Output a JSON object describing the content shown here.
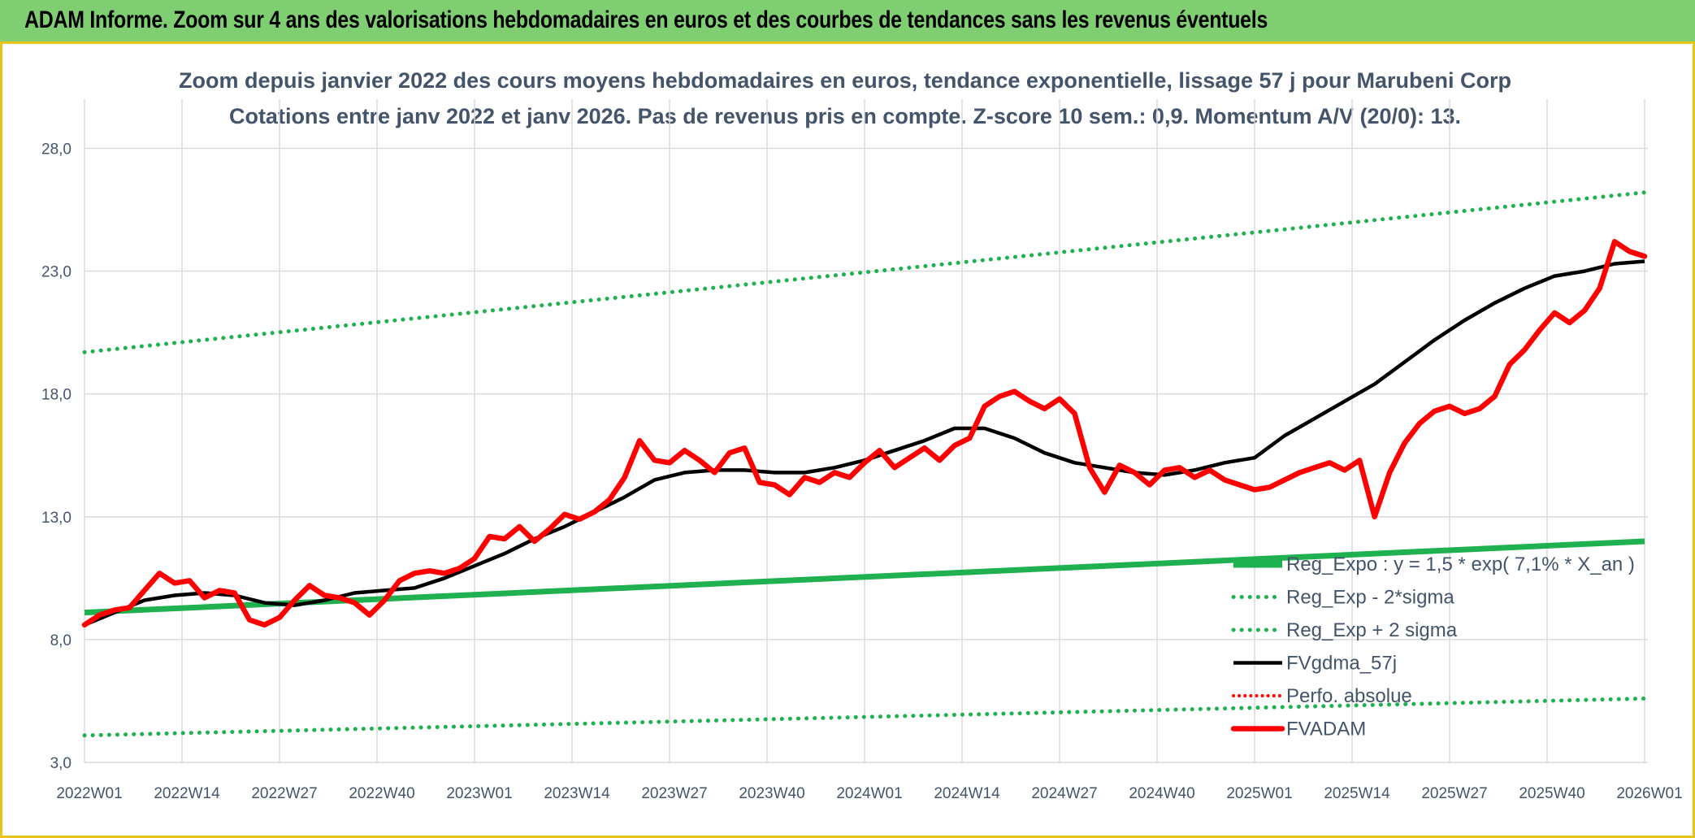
{
  "banner": {
    "title": "ADAM Informe. Zoom sur 4 ans des valorisations hebdomadaires en euros et des courbes de tendances sans les revenus éventuels"
  },
  "colors": {
    "banner_bg": "#7fcf72",
    "frame": "#e6c419",
    "text": "#44546a",
    "green": "#1fb04f",
    "black": "#000000",
    "red": "#ff0000",
    "grid": "#d9d9d9"
  },
  "chart_data": {
    "type": "line",
    "title": "Zoom depuis janvier 2022 des cours moyens hebdomadaires en euros, tendance exponentielle, lissage 57 j pour Marubeni Corp",
    "subtitle": "Cotations entre janv 2022 et janv 2026. Pas de revenus pris en compte. Z-score 10 sem.: 0,9. Momentum A/V (20/0): 13.",
    "x_ticks": [
      "2022W01",
      "2022W14",
      "2022W27",
      "2022W40",
      "2023W01",
      "2023W14",
      "2023W27",
      "2023W40",
      "2024W01",
      "2024W14",
      "2024W27",
      "2024W40",
      "2025W01",
      "2025W14",
      "2025W27",
      "2025W40",
      "2026W01"
    ],
    "y_ticks": [
      "3,0",
      "8,0",
      "13,0",
      "18,0",
      "23,0",
      "28,0"
    ],
    "ylim": [
      3,
      30
    ],
    "x_range_weeks": [
      0,
      208
    ],
    "grid": true,
    "legend_placement": "bottom-right",
    "series": [
      {
        "name": "Reg_Expo : y = 1,5 * exp( 7,1% *  X_an )",
        "style": "solid-green",
        "x": [
          0,
          208
        ],
        "values": [
          9.1,
          12.0
        ]
      },
      {
        "name": "Reg_Exp - 2*sigma",
        "style": "dotted-green",
        "x": [
          0,
          208
        ],
        "values": [
          4.1,
          5.6
        ]
      },
      {
        "name": "Reg_Exp + 2 sigma",
        "style": "dotted-green",
        "x": [
          0,
          208
        ],
        "values": [
          19.7,
          26.2
        ]
      },
      {
        "name": "FVgdma_57j",
        "style": "solid-black",
        "x": [
          0,
          4,
          8,
          12,
          16,
          20,
          24,
          28,
          32,
          36,
          40,
          44,
          48,
          52,
          56,
          60,
          64,
          68,
          72,
          76,
          80,
          84,
          88,
          92,
          96,
          100,
          104,
          108,
          112,
          116,
          120,
          124,
          128,
          132,
          136,
          140,
          144,
          148,
          152,
          156,
          160,
          164,
          168,
          172,
          176,
          180,
          184,
          188,
          192,
          196,
          200,
          204,
          208
        ],
        "values": [
          8.6,
          9.1,
          9.6,
          9.8,
          9.9,
          9.8,
          9.5,
          9.4,
          9.6,
          9.9,
          10.0,
          10.1,
          10.5,
          11.0,
          11.5,
          12.1,
          12.6,
          13.2,
          13.8,
          14.5,
          14.8,
          14.9,
          14.9,
          14.8,
          14.8,
          15.0,
          15.3,
          15.7,
          16.1,
          16.6,
          16.6,
          16.2,
          15.6,
          15.2,
          15.0,
          14.8,
          14.7,
          14.9,
          15.2,
          15.4,
          16.3,
          17.0,
          17.7,
          18.4,
          19.3,
          20.2,
          21.0,
          21.7,
          22.3,
          22.8,
          23.0,
          23.3,
          23.4
        ]
      },
      {
        "name": "Perfo. absolue",
        "style": "dotted-red",
        "x": [],
        "values": []
      },
      {
        "name": "FVADAM",
        "style": "solid-red",
        "x": [
          0,
          2,
          4,
          6,
          8,
          10,
          12,
          14,
          16,
          18,
          20,
          22,
          24,
          26,
          28,
          30,
          32,
          34,
          36,
          38,
          40,
          42,
          44,
          46,
          48,
          50,
          52,
          54,
          56,
          58,
          60,
          62,
          64,
          66,
          68,
          70,
          72,
          74,
          76,
          78,
          80,
          82,
          84,
          86,
          88,
          90,
          92,
          94,
          96,
          98,
          100,
          102,
          104,
          106,
          108,
          110,
          112,
          114,
          116,
          118,
          120,
          122,
          124,
          126,
          128,
          130,
          132,
          134,
          136,
          138,
          140,
          142,
          144,
          146,
          148,
          150,
          152,
          154,
          156,
          158,
          160,
          162,
          164,
          166,
          168,
          170,
          172,
          174,
          176,
          178,
          180,
          182,
          184,
          186,
          188,
          190,
          192,
          194,
          196,
          198,
          200,
          202,
          204,
          206,
          208
        ],
        "values": [
          8.6,
          9.0,
          9.2,
          9.3,
          10.0,
          10.7,
          10.3,
          10.4,
          9.7,
          10.0,
          9.9,
          8.8,
          8.6,
          8.9,
          9.6,
          10.2,
          9.8,
          9.7,
          9.5,
          9.0,
          9.6,
          10.4,
          10.7,
          10.8,
          10.7,
          10.9,
          11.3,
          12.2,
          12.1,
          12.6,
          12.0,
          12.5,
          13.1,
          12.9,
          13.2,
          13.7,
          14.6,
          16.1,
          15.3,
          15.2,
          15.7,
          15.3,
          14.8,
          15.6,
          15.8,
          14.4,
          14.3,
          13.9,
          14.6,
          14.4,
          14.8,
          14.6,
          15.2,
          15.7,
          15.0,
          15.4,
          15.8,
          15.3,
          15.9,
          16.2,
          17.5,
          17.9,
          18.1,
          17.7,
          17.4,
          17.8,
          17.2,
          15.0,
          14.0,
          15.1,
          14.8,
          14.3,
          14.9,
          15.0,
          14.6,
          14.9,
          14.5,
          14.3,
          14.1,
          14.2,
          14.5,
          14.8,
          15.0,
          15.2,
          14.9,
          15.3,
          13.0,
          14.8,
          16.0,
          16.8,
          17.3,
          17.5,
          17.2,
          17.4,
          17.9,
          19.2,
          19.8,
          20.6,
          21.3,
          20.9,
          21.4,
          22.3,
          24.2,
          23.8,
          23.6
        ]
      }
    ],
    "x_axis_labels_shown": true
  }
}
